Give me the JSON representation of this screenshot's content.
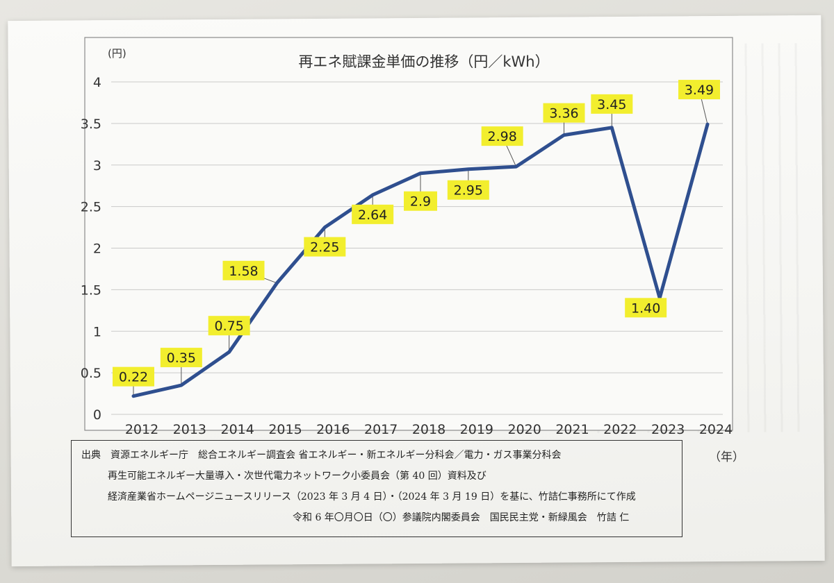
{
  "chart_data": {
    "type": "line",
    "title": "再エネ賦課金単価の推移（円／kWh）",
    "y_unit": "(円)",
    "x_unit": "（年）",
    "x": [
      "2012",
      "2013",
      "2014",
      "2015",
      "2016",
      "2017",
      "2018",
      "2019",
      "2020",
      "2021",
      "2022",
      "2023",
      "2024"
    ],
    "series": [
      {
        "values": [
          0.22,
          0.35,
          0.75,
          1.58,
          2.25,
          2.64,
          2.9,
          2.95,
          2.98,
          3.36,
          3.45,
          1.4,
          3.49
        ]
      }
    ],
    "data_labels": [
      "0.22",
      "0.35",
      "0.75",
      "1.58",
      "2.25",
      "2.64",
      "2.9",
      "2.95",
      "2.98",
      "3.36",
      "3.45",
      "1.40",
      "3.49"
    ],
    "y_ticks": [
      "0",
      "0.5",
      "1",
      "1.5",
      "2",
      "2.5",
      "3",
      "3.5",
      "4"
    ],
    "ylim": [
      0,
      4
    ],
    "grid": true,
    "line_color": "#2f4f8f",
    "label_highlight": "#f2ee2e"
  },
  "source": {
    "lines": [
      "出典　資源エネルギー庁　総合エネルギー調査会 省エネルギー・新エネルギー分科会／電力・ガス事業分科会",
      "再生可能エネルギー大量導入・次世代電力ネットワーク小委員会（第 40 回）資料及び",
      "経済産業省ホームページニュースリリース（2023 年 3 月 4 日）・（2024 年 3 月 19 日）を基に、竹詰仁事務所にて作成",
      "令和 6 年〇月〇日（〇）参議院内閣委員会　国民民主党・新緑風会　竹詰 仁"
    ]
  }
}
